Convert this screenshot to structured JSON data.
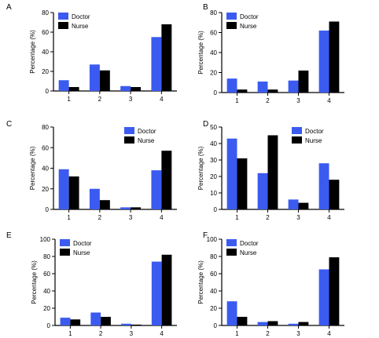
{
  "colors": {
    "doctor": "#3b5bf0",
    "nurse": "#000000",
    "axis": "#000000"
  },
  "chart_data": [
    {
      "panel": "A",
      "type": "bar",
      "categories": [
        "1",
        "2",
        "3",
        "4"
      ],
      "series": [
        {
          "name": "Doctor",
          "values": [
            11,
            27,
            5,
            55
          ]
        },
        {
          "name": "Nurse",
          "values": [
            4,
            21,
            4,
            68
          ]
        }
      ],
      "ylabel": "Percentage (%)",
      "xlabel": "",
      "ylim": [
        0,
        80
      ],
      "yticks": [
        0,
        20,
        40,
        60,
        80
      ],
      "legend": "top-left",
      "grid": false
    },
    {
      "panel": "B",
      "type": "bar",
      "categories": [
        "1",
        "2",
        "3",
        "4"
      ],
      "series": [
        {
          "name": "Doctor",
          "values": [
            14,
            11,
            12,
            62
          ]
        },
        {
          "name": "Nurse",
          "values": [
            3,
            3,
            22,
            71
          ]
        }
      ],
      "ylabel": "Percentage (%)",
      "xlabel": "",
      "ylim": [
        0,
        80
      ],
      "yticks": [
        0,
        20,
        40,
        60,
        80
      ],
      "legend": "top-left",
      "grid": false
    },
    {
      "panel": "C",
      "type": "bar",
      "categories": [
        "1",
        "2",
        "3",
        "4"
      ],
      "series": [
        {
          "name": "Doctor",
          "values": [
            39,
            20,
            2,
            38
          ]
        },
        {
          "name": "Nurse",
          "values": [
            32,
            9,
            2,
            57
          ]
        }
      ],
      "ylabel": "Percentage (%)",
      "xlabel": "",
      "ylim": [
        0,
        80
      ],
      "yticks": [
        0,
        20,
        40,
        60,
        80
      ],
      "legend": "top-right",
      "grid": false
    },
    {
      "panel": "D",
      "type": "bar",
      "categories": [
        "1",
        "2",
        "3",
        "4"
      ],
      "series": [
        {
          "name": "Doctor",
          "values": [
            43,
            22,
            6,
            28
          ]
        },
        {
          "name": "Nurse",
          "values": [
            31,
            45,
            4,
            18
          ]
        }
      ],
      "ylabel": "Percentage (%)",
      "xlabel": "",
      "ylim": [
        0,
        50
      ],
      "yticks": [
        0,
        10,
        20,
        30,
        40,
        50
      ],
      "legend": "top-right",
      "grid": false
    },
    {
      "panel": "E",
      "type": "bar",
      "categories": [
        "1",
        "2",
        "3",
        "4"
      ],
      "series": [
        {
          "name": "Doctor",
          "values": [
            9,
            15,
            2,
            74
          ]
        },
        {
          "name": "Nurse",
          "values": [
            7,
            10,
            1,
            82
          ]
        }
      ],
      "ylabel": "Percentage (%)",
      "xlabel": "",
      "ylim": [
        0,
        100
      ],
      "yticks": [
        0,
        20,
        40,
        60,
        80,
        100
      ],
      "legend": "top-left",
      "grid": false
    },
    {
      "panel": "F",
      "type": "bar",
      "categories": [
        "1",
        "2",
        "3",
        "4"
      ],
      "series": [
        {
          "name": "Doctor",
          "values": [
            28,
            4,
            2,
            65
          ]
        },
        {
          "name": "Nurse",
          "values": [
            10,
            5,
            4,
            79
          ]
        }
      ],
      "ylabel": "Percentage (%)",
      "xlabel": "",
      "ylim": [
        0,
        100
      ],
      "yticks": [
        0,
        20,
        40,
        60,
        80,
        100
      ],
      "legend": "top-left",
      "grid": false
    }
  ]
}
